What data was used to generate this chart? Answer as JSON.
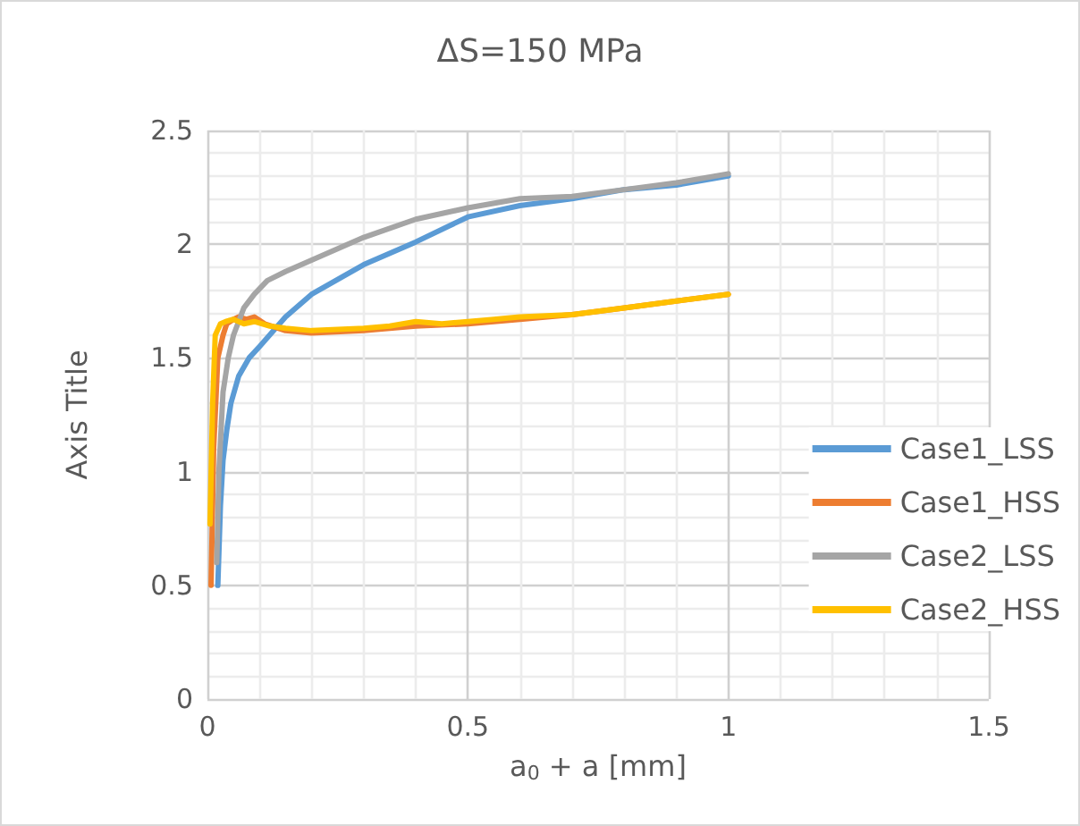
{
  "chart_data": {
    "type": "line",
    "title": "ΔS=150 MPa",
    "xlabel": "a$_{0}$ + a [mm]",
    "ylabel": "Axis Title",
    "xlim": [
      0,
      1.5
    ],
    "xticks": [
      0,
      0.5,
      1,
      1.5
    ],
    "ylim": [
      0,
      2.5
    ],
    "yticks": [
      0,
      0.5,
      1,
      1.5,
      2,
      2.5
    ],
    "grid": true,
    "legend": "right",
    "marker": "none",
    "line_style": "solid",
    "series": [
      {
        "name": "Case1_LSS",
        "color": "#5b9bd5",
        "x": [
          0.02,
          0.025,
          0.03,
          0.037,
          0.045,
          0.06,
          0.08,
          0.1,
          0.15,
          0.2,
          0.3,
          0.4,
          0.5,
          0.6,
          0.7,
          0.8,
          0.9,
          1.0
        ],
        "values": [
          0.5,
          0.85,
          1.05,
          1.18,
          1.3,
          1.42,
          1.5,
          1.55,
          1.68,
          1.78,
          1.91,
          2.01,
          2.12,
          2.17,
          2.2,
          2.24,
          2.26,
          2.3
        ]
      },
      {
        "name": "Case1_HSS",
        "color": "#ed7d31",
        "x": [
          0.007,
          0.012,
          0.02,
          0.03,
          0.037,
          0.05,
          0.06,
          0.075,
          0.09,
          0.11,
          0.15,
          0.2,
          0.3,
          0.4,
          0.5,
          0.6,
          0.7,
          0.8,
          0.9,
          1.0
        ],
        "values": [
          0.5,
          1.1,
          1.5,
          1.6,
          1.65,
          1.67,
          1.68,
          1.67,
          1.68,
          1.65,
          1.62,
          1.61,
          1.62,
          1.64,
          1.65,
          1.67,
          1.69,
          1.72,
          1.75,
          1.78
        ]
      },
      {
        "name": "Case2_LSS",
        "color": "#a5a5a5",
        "x": [
          0.018,
          0.022,
          0.03,
          0.04,
          0.05,
          0.07,
          0.09,
          0.115,
          0.15,
          0.2,
          0.3,
          0.4,
          0.5,
          0.6,
          0.7,
          0.8,
          0.9,
          1.0
        ],
        "values": [
          0.6,
          1.0,
          1.35,
          1.5,
          1.6,
          1.72,
          1.78,
          1.84,
          1.88,
          1.93,
          2.03,
          2.11,
          2.16,
          2.2,
          2.21,
          2.24,
          2.27,
          2.31
        ]
      },
      {
        "name": "Case2_HSS",
        "color": "#ffc000",
        "x": [
          0.005,
          0.01,
          0.015,
          0.025,
          0.035,
          0.05,
          0.07,
          0.09,
          0.12,
          0.15,
          0.2,
          0.3,
          0.35,
          0.4,
          0.45,
          0.5,
          0.55,
          0.6,
          0.7,
          0.8,
          0.9,
          1.0
        ],
        "values": [
          0.77,
          1.3,
          1.6,
          1.65,
          1.66,
          1.67,
          1.65,
          1.66,
          1.64,
          1.63,
          1.62,
          1.63,
          1.64,
          1.66,
          1.65,
          1.66,
          1.67,
          1.68,
          1.69,
          1.72,
          1.75,
          1.78
        ]
      }
    ]
  }
}
